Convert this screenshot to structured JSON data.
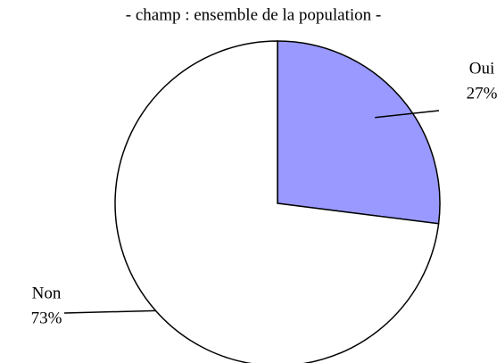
{
  "chart_data": {
    "type": "pie",
    "title": "- champ : ensemble de la population -",
    "categories": [
      "Oui",
      "Non"
    ],
    "values": [
      27,
      73
    ],
    "value_labels": [
      "27%",
      "73%"
    ],
    "colors": [
      "#9999ff",
      "#ffffff"
    ]
  }
}
